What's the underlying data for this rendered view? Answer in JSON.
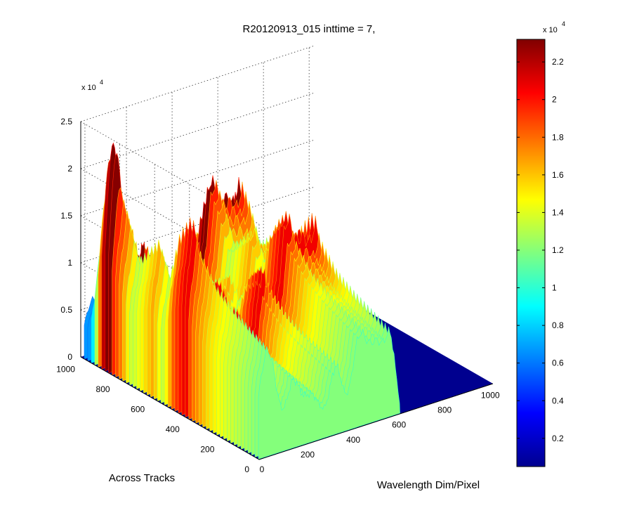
{
  "chart_data": {
    "type": "surface",
    "title": "R20120913_015 inttime = 7,",
    "xlabel": "Wavelength Dim/Pixel",
    "ylabel": "Across Tracks",
    "zlabel": "",
    "xlim": [
      0,
      1024
    ],
    "ylim": [
      0,
      1024
    ],
    "zlim": [
      0,
      25000
    ],
    "x_ticks": [
      "0",
      "200",
      "400",
      "600",
      "800",
      "1000"
    ],
    "x_tick_values": [
      0,
      200,
      400,
      600,
      800,
      1000
    ],
    "y_ticks": [
      "0",
      "200",
      "400",
      "600",
      "800",
      "1000"
    ],
    "y_tick_values": [
      0,
      200,
      400,
      600,
      800,
      1000
    ],
    "z_ticks": [
      "0",
      "0.5",
      "1",
      "1.5",
      "2",
      "2.5"
    ],
    "z_tick_values": [
      0,
      5000,
      10000,
      15000,
      20000,
      25000
    ],
    "z_multiplier_base": "x 10",
    "z_multiplier_exp": "4",
    "grid": true,
    "colormap": "jet",
    "colorbar": {
      "position": "right",
      "clim": [
        500,
        23200
      ],
      "ticks": [
        "0.2",
        "0.4",
        "0.6",
        "0.8",
        "1",
        "1.2",
        "1.4",
        "1.6",
        "1.8",
        "2",
        "2.2"
      ],
      "tick_values": [
        2000,
        4000,
        6000,
        8000,
        10000,
        12000,
        14000,
        16000,
        18000,
        20000,
        22000
      ],
      "multiplier_base": "x 10",
      "multiplier_exp": "4"
    },
    "surface_summary": {
      "x_range_active": [
        0,
        620
      ],
      "y_range_active": [
        0,
        1000
      ],
      "peaks": [
        {
          "x": 35,
          "y": 880,
          "z": 24000
        },
        {
          "x": 150,
          "y": 700,
          "z": 15500
        },
        {
          "x": 340,
          "y": 470,
          "z": 17800
        },
        {
          "x": 450,
          "y": 460,
          "z": 21300
        },
        {
          "x": 560,
          "y": 450,
          "z": 19600
        }
      ],
      "rows": [
        {
          "y": 0,
          "scale": 0.55
        },
        {
          "y": 100,
          "scale": 0.6
        },
        {
          "y": 200,
          "scale": 0.65
        },
        {
          "y": 300,
          "scale": 0.72
        },
        {
          "y": 400,
          "scale": 0.86
        },
        {
          "y": 430,
          "scale": 1.0
        },
        {
          "y": 500,
          "scale": 0.88
        },
        {
          "y": 560,
          "scale": 0.62
        },
        {
          "y": 620,
          "scale": 0.78
        },
        {
          "y": 680,
          "scale": 0.7
        },
        {
          "y": 740,
          "scale": 0.62
        },
        {
          "y": 800,
          "scale": 0.82
        },
        {
          "y": 860,
          "scale": 0.96
        },
        {
          "y": 920,
          "scale": 0.65
        },
        {
          "y": 980,
          "scale": 0.3
        }
      ]
    }
  }
}
